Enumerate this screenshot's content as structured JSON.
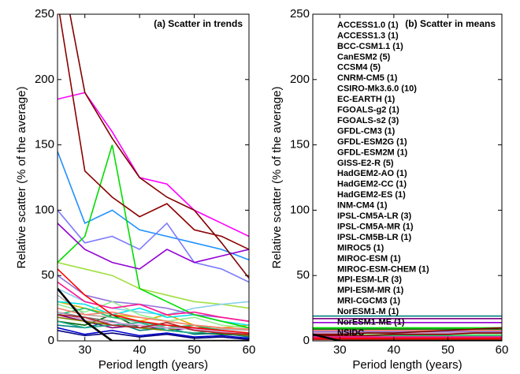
{
  "chart_data": [
    {
      "type": "line",
      "title": "(a) Scatter in trends",
      "x_label": "Period length (years)",
      "y_label": "Relative scatter (% of the average)",
      "x": [
        25,
        30,
        35,
        40,
        45,
        50,
        55,
        60
      ],
      "xlim": [
        25,
        60
      ],
      "xticks": [
        30,
        40,
        50,
        60
      ],
      "ylim": [
        0,
        250
      ],
      "yticks": [
        0,
        50,
        100,
        150,
        200,
        250
      ],
      "series": [
        {
          "color": "#c8b400",
          "values": [
            30,
            25,
            20,
            18,
            15,
            12,
            10,
            8
          ]
        },
        {
          "color": "#e8a800",
          "values": [
            25,
            20,
            18,
            15,
            20,
            12,
            10,
            12
          ]
        },
        {
          "color": "#800080",
          "values": [
            20,
            15,
            10,
            12,
            8,
            10,
            6,
            5
          ]
        },
        {
          "color": "#a0e040",
          "values": [
            60,
            55,
            50,
            40,
            35,
            30,
            28,
            25
          ]
        },
        {
          "color": "#1e90ff",
          "values": [
            145,
            90,
            100,
            85,
            80,
            75,
            70,
            62
          ]
        },
        {
          "color": "#006400",
          "values": [
            15,
            12,
            20,
            10,
            8,
            6,
            5,
            4
          ]
        },
        {
          "color": "#ff00ff",
          "values": [
            185,
            190,
            160,
            125,
            120,
            100,
            90,
            80
          ]
        },
        {
          "color": "#0000cd",
          "values": [
            10,
            5,
            8,
            4,
            6,
            3,
            4,
            2
          ]
        },
        {
          "color": "#7b7bff",
          "values": [
            100,
            75,
            80,
            70,
            90,
            60,
            55,
            45
          ]
        },
        {
          "color": "#87ceeb",
          "values": [
            40,
            30,
            25,
            22,
            20,
            25,
            28,
            30
          ]
        },
        {
          "color": "#808080",
          "values": [
            22,
            18,
            15,
            10,
            12,
            8,
            6,
            5
          ]
        },
        {
          "color": "#b0b0b0",
          "values": [
            35,
            20,
            18,
            14,
            12,
            10,
            9,
            8
          ]
        },
        {
          "color": "#00e5ee",
          "values": [
            30,
            28,
            20,
            25,
            18,
            20,
            15,
            12
          ]
        },
        {
          "color": "#008080",
          "values": [
            12,
            10,
            15,
            8,
            10,
            5,
            6,
            3
          ]
        },
        {
          "color": "#9370db",
          "values": [
            50,
            35,
            30,
            28,
            25,
            20,
            18,
            15
          ]
        },
        {
          "color": "#808000",
          "values": [
            18,
            15,
            12,
            10,
            8,
            12,
            6,
            4
          ]
        },
        {
          "color": "#90ee90",
          "values": [
            28,
            22,
            30,
            20,
            15,
            18,
            12,
            10
          ]
        },
        {
          "color": "#00dd00",
          "values": [
            60,
            80,
            150,
            40,
            30,
            20,
            15,
            10
          ]
        },
        {
          "color": "#9400d3",
          "values": [
            90,
            70,
            60,
            55,
            70,
            60,
            65,
            70
          ]
        },
        {
          "color": "#20c070",
          "values": [
            20,
            25,
            18,
            15,
            10,
            12,
            8,
            6
          ]
        },
        {
          "color": "#20b090",
          "values": [
            15,
            10,
            12,
            14,
            8,
            6,
            8,
            5
          ]
        },
        {
          "color": "#000080",
          "values": [
            8,
            4,
            6,
            3,
            5,
            2,
            3,
            1
          ]
        },
        {
          "color": "#fa8072",
          "values": [
            25,
            20,
            22,
            18,
            15,
            12,
            10,
            9
          ]
        },
        {
          "color": "#dda0dd",
          "values": [
            22,
            16,
            14,
            12,
            10,
            9,
            7,
            6
          ]
        },
        {
          "color": "#800000",
          "values": [
            300,
            190,
            155,
            125,
            110,
            100,
            75,
            48
          ]
        },
        {
          "color": "#8b0000",
          "values": [
            260,
            130,
            110,
            95,
            105,
            85,
            80,
            70
          ]
        },
        {
          "color": "#ff1493",
          "values": [
            45,
            30,
            25,
            28,
            20,
            22,
            18,
            15
          ]
        },
        {
          "color": "#ff0000",
          "values": [
            55,
            35,
            20,
            15,
            12,
            10,
            8,
            6
          ]
        },
        {
          "color": "#b22222",
          "values": [
            20,
            18,
            12,
            10,
            14,
            8,
            6,
            5
          ]
        },
        {
          "color": "#000000",
          "values": [
            40,
            15,
            0,
            0,
            0,
            0,
            0,
            0
          ]
        }
      ]
    },
    {
      "type": "line",
      "title": "(b) Scatter in means",
      "x_label": "Period length (years)",
      "y_label": "Relative scatter (% of the average)",
      "x": [
        25,
        30,
        35,
        40,
        45,
        50,
        55,
        60
      ],
      "xlim": [
        25,
        60
      ],
      "xticks": [
        30,
        40,
        50,
        60
      ],
      "ylim": [
        0,
        250
      ],
      "yticks": [
        0,
        50,
        100,
        150,
        200,
        250
      ],
      "series": [
        {
          "name": "ACCESS1.0 (1)",
          "color": "#c8b400",
          "values": [
            5,
            5,
            5,
            5,
            5,
            5,
            5,
            5
          ]
        },
        {
          "name": "ACCESS1.3 (1)",
          "color": "#e8a800",
          "values": [
            6,
            6,
            6,
            6,
            6,
            6,
            6,
            6
          ]
        },
        {
          "name": "BCC-CSM1.1 (1)",
          "color": "#800080",
          "values": [
            17,
            17,
            17,
            17,
            17,
            17,
            17,
            17
          ]
        },
        {
          "name": "CanESM2 (5)",
          "color": "#a0e040",
          "values": [
            4,
            4,
            4,
            4,
            4,
            4,
            4,
            4
          ]
        },
        {
          "name": "CCSM4 (5)",
          "color": "#1e90ff",
          "values": [
            3,
            3,
            3,
            3,
            3,
            3,
            3,
            3
          ]
        },
        {
          "name": "CNRM-CM5 (1)",
          "color": "#006400",
          "values": [
            9,
            9,
            9,
            9,
            9,
            9,
            9,
            9
          ]
        },
        {
          "name": "CSIRO-Mk3.6.0 (10)",
          "color": "#ff00ff",
          "values": [
            3,
            3,
            3,
            3,
            3,
            3,
            3,
            3
          ]
        },
        {
          "name": "EC-EARTH (1)",
          "color": "#0000cd",
          "values": [
            2,
            2,
            2,
            2,
            2,
            2,
            2,
            2
          ]
        },
        {
          "name": "FGOALS-g2 (1)",
          "color": "#7b7bff",
          "values": [
            6,
            6,
            6,
            6,
            6,
            6,
            6,
            6
          ]
        },
        {
          "name": "FGOALS-s2 (3)",
          "color": "#87ceeb",
          "values": [
            5,
            5,
            5,
            5,
            5,
            5,
            5,
            5
          ]
        },
        {
          "name": "GFDL-CM3 (1)",
          "color": "#808080",
          "values": [
            7,
            7,
            7,
            7,
            7,
            7,
            7,
            7
          ]
        },
        {
          "name": "GFDL-ESM2G (1)",
          "color": "#b0b0b0",
          "values": [
            4,
            4,
            4,
            4,
            4,
            4,
            4,
            4
          ]
        },
        {
          "name": "GFDL-ESM2M (1)",
          "color": "#00e5ee",
          "values": [
            8,
            8,
            8,
            8,
            8,
            8,
            8,
            8
          ]
        },
        {
          "name": "GISS-E2-R (5)",
          "color": "#008080",
          "values": [
            19,
            19,
            19,
            19,
            19,
            19,
            19,
            19
          ]
        },
        {
          "name": "HadGEM2-AO (1)",
          "color": "#9370db",
          "values": [
            7,
            7,
            7,
            7,
            7,
            7,
            7,
            7
          ]
        },
        {
          "name": "HadGEM2-CC (1)",
          "color": "#808000",
          "values": [
            6,
            6,
            6,
            6,
            6,
            6,
            6,
            6
          ]
        },
        {
          "name": "HadGEM2-ES (1)",
          "color": "#90ee90",
          "values": [
            5,
            5,
            5,
            5,
            5,
            5,
            5,
            5
          ]
        },
        {
          "name": "INM-CM4 (1)",
          "color": "#00dd00",
          "values": [
            10,
            10,
            10,
            10,
            10,
            10,
            10,
            10
          ]
        },
        {
          "name": "IPSL-CM5A-LR (3)",
          "color": "#9400d3",
          "values": [
            14,
            14,
            14,
            14,
            14,
            14,
            14,
            14
          ]
        },
        {
          "name": "IPSL-CM5A-MR (1)",
          "color": "#20c070",
          "values": [
            4,
            4,
            4,
            4,
            4,
            4,
            4,
            4
          ]
        },
        {
          "name": "IPSL-CM5B-LR (1)",
          "color": "#20b090",
          "values": [
            3,
            3,
            3,
            3,
            3,
            3,
            3,
            3
          ]
        },
        {
          "name": "MIROC5 (1)",
          "color": "#000080",
          "values": [
            2,
            2,
            2,
            2,
            2,
            2,
            2,
            2
          ]
        },
        {
          "name": "MIROC-ESM (1)",
          "color": "#fa8072",
          "values": [
            8,
            8,
            8,
            8,
            8,
            8,
            8,
            8
          ]
        },
        {
          "name": "MIROC-ESM-CHEM (1)",
          "color": "#dda0dd",
          "values": [
            6,
            6,
            6,
            6,
            6,
            6,
            6,
            6
          ]
        },
        {
          "name": "MPI-ESM-LR (3)",
          "color": "#800000",
          "values": [
            5,
            5,
            6,
            6,
            7,
            8,
            9,
            10
          ]
        },
        {
          "name": "MPI-ESM-MR (1)",
          "color": "#8b0000",
          "values": [
            4,
            4,
            4,
            5,
            5,
            5,
            6,
            6
          ]
        },
        {
          "name": "MRI-CGCM3 (1)",
          "color": "#ff1493",
          "values": [
            3,
            3,
            3,
            3,
            3,
            3,
            3,
            3
          ]
        },
        {
          "name": "NorESM1-M (1)",
          "color": "#ff0000",
          "values": [
            2,
            2,
            2,
            2,
            2,
            2,
            2,
            2
          ]
        },
        {
          "name": "NorESM1-ME (1)",
          "color": "#b22222",
          "values": [
            1,
            1,
            1,
            1,
            1,
            1,
            1,
            1
          ]
        },
        {
          "name": "NSIDC",
          "color": "#000000",
          "values": [
            5,
            0,
            0,
            0,
            0,
            0,
            0,
            0
          ]
        }
      ]
    }
  ]
}
